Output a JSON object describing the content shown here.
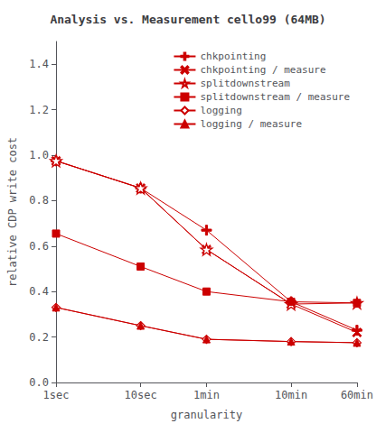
{
  "chart_data": {
    "type": "line",
    "title": "Analysis vs. Measurement cello99 (64MB)",
    "xlabel": "granularity",
    "ylabel": "relative CDP write cost",
    "log": "x",
    "x": [
      1,
      10,
      60,
      600,
      3600
    ],
    "xlim": [
      1,
      3600
    ],
    "xticks": [
      {
        "value": 1,
        "label": "1sec"
      },
      {
        "value": 10,
        "label": "10sec"
      },
      {
        "value": 60,
        "label": "1min"
      },
      {
        "value": 600,
        "label": "10min"
      },
      {
        "value": 3600,
        "label": "60min"
      }
    ],
    "ylim": [
      0,
      1.5
    ],
    "yticks": [
      {
        "value": 0,
        "label": "0.0"
      },
      0.2,
      0.4,
      0.6,
      0.8,
      {
        "value": 1.0,
        "label": "1.0"
      },
      1.2,
      1.4
    ],
    "color": "#cc0000",
    "grid": false,
    "legend": "upper right",
    "series": [
      {
        "name": "chkpointing",
        "marker": "plus",
        "values": [
          0.975,
          0.855,
          0.67,
          0.355,
          0.23
        ]
      },
      {
        "name": "chkpointing / measure",
        "marker": "x",
        "values": [
          0.975,
          0.855,
          0.585,
          0.345,
          0.22
        ]
      },
      {
        "name": "splitdownstream",
        "marker": "star",
        "values": [
          0.975,
          0.855,
          0.585,
          0.345,
          0.35
        ]
      },
      {
        "name": "splitdownstream / measure",
        "marker": "square",
        "values": [
          0.655,
          0.51,
          0.4,
          0.355,
          0.35
        ]
      },
      {
        "name": "logging",
        "marker": "diamond",
        "values": [
          0.33,
          0.25,
          0.19,
          0.18,
          0.175
        ]
      },
      {
        "name": "logging / measure",
        "marker": "triangle",
        "values": [
          0.33,
          0.25,
          0.19,
          0.18,
          0.175
        ]
      }
    ]
  }
}
